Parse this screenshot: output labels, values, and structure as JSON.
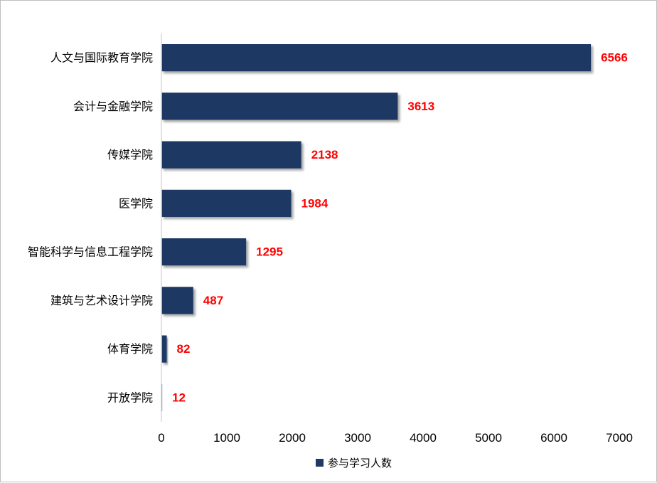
{
  "colors": {
    "bar": "#1f3864",
    "data_label": "#ff0000",
    "axis": "#d9d9d9"
  },
  "chart_data": {
    "type": "bar",
    "orientation": "horizontal",
    "categories": [
      "人文与国际教育学院",
      "会计与金融学院",
      "传媒学院",
      "医学院",
      "智能科学与信息工程学院",
      "建筑与艺术设计学院",
      "体育学院",
      "开放学院"
    ],
    "series": [
      {
        "name": "参与学习人数",
        "values": [
          6566,
          3613,
          2138,
          1984,
          1295,
          487,
          82,
          12
        ]
      }
    ],
    "xlim": [
      0,
      7000
    ],
    "xticks": [
      "0",
      "1000",
      "2000",
      "3000",
      "4000",
      "5000",
      "6000",
      "7000"
    ],
    "grid": false,
    "legend_position": "bottom",
    "data_labels": true
  }
}
